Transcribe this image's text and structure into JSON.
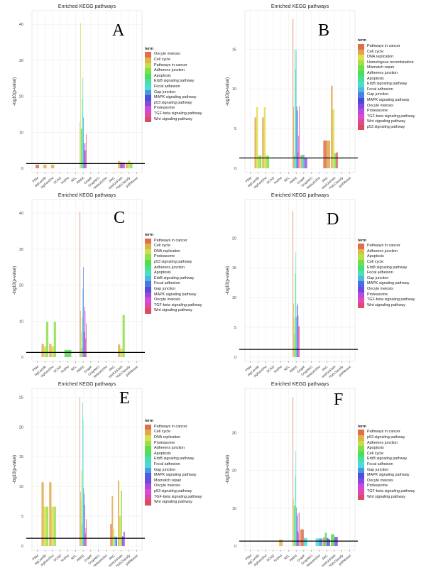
{
  "chart_data": [
    {
      "panel_label": "A",
      "type": "bar",
      "title": "Enriched KEGG pathways",
      "xlabel": "",
      "ylabel": "-log10(p-value)",
      "legend_title": "term",
      "ylim": [
        0,
        43
      ],
      "yticks": [
        0,
        10,
        20,
        30,
        40
      ],
      "threshold": 1.3,
      "grid": true,
      "legend_placement": "right",
      "categories": [
        "PAM",
        "sigCamfB",
        "sigGenSh4",
        "SCAD",
        "hnSh4",
        "RFL",
        "RRFE",
        "GrapK",
        "GraphKG",
        "networkSh4",
        "PAC",
        "swelUnPath",
        "HubClassify",
        "pathBoost"
      ],
      "terms": [
        "Oocyte meiosis",
        "Cell cycle",
        "Pathways in cancer",
        "Adherens junction",
        "Apoptosis",
        "ErbB signaling pathway",
        "Focal adhesion",
        "Gap junction",
        "MAPK signaling pathway",
        "p53 signaling pathway",
        "Proteasome",
        "TGF-beta signaling pathway",
        "Wnt signaling pathway"
      ],
      "bars": [
        [
          0,
          0,
          1
        ],
        [
          1,
          1,
          1
        ],
        [
          2,
          1,
          1
        ],
        [
          6,
          1,
          12.8
        ],
        [
          6,
          2,
          40.3
        ],
        [
          6,
          3,
          11
        ],
        [
          6,
          4,
          11
        ],
        [
          6,
          5,
          19.2
        ],
        [
          6,
          6,
          25.1
        ],
        [
          6,
          7,
          14.1
        ],
        [
          6,
          8,
          7
        ],
        [
          6,
          9,
          5
        ],
        [
          6,
          10,
          7
        ],
        [
          6,
          11,
          5
        ],
        [
          6,
          12,
          9.5
        ],
        [
          11,
          1,
          2
        ],
        [
          11,
          9,
          1.6
        ],
        [
          11,
          10,
          1.6
        ],
        [
          12,
          1,
          1.5
        ],
        [
          12,
          2,
          2.1
        ],
        [
          12,
          3,
          1.5
        ]
      ]
    },
    {
      "panel_label": "B",
      "type": "bar",
      "title": "Enriched KEGG pathways",
      "xlabel": "",
      "ylabel": "-log10(p-value)",
      "legend_title": "term",
      "ylim": [
        0,
        19.5
      ],
      "yticks": [
        0,
        5,
        10,
        15
      ],
      "threshold": 1.3,
      "grid": true,
      "legend_placement": "right",
      "categories": [
        "PAM",
        "sigCamfB",
        "sigGenSh4",
        "SCAD",
        "hnSh4",
        "RFL",
        "RRFE",
        "GrapK",
        "GraphKG",
        "networkSh4",
        "PAC",
        "swelUnPath",
        "HubClassify",
        "pathBoost"
      ],
      "terms": [
        "Pathways in cancer",
        "Cell cycle",
        "DNA replication",
        "Homologous recombination",
        "Mismatch repair",
        "Adherens junction",
        "Apoptosis",
        "ErbB signaling pathway",
        "Focal adhesion",
        "Gap junction",
        "MAPK signaling pathway",
        "Oocyte meiosis",
        "Proteasome",
        "TGF-beta signaling pathway",
        "Wnt signaling pathway",
        "p53 signaling pathway"
      ],
      "bars": [
        [
          1,
          1,
          6.4
        ],
        [
          1,
          2,
          7.7
        ],
        [
          1,
          3,
          1.6
        ],
        [
          1,
          4,
          1.6
        ],
        [
          2,
          1,
          6.4
        ],
        [
          2,
          2,
          7.7
        ],
        [
          2,
          3,
          1.6
        ],
        [
          2,
          4,
          1.6
        ],
        [
          6,
          0,
          18.8
        ],
        [
          6,
          1,
          7.7
        ],
        [
          6,
          5,
          1.6
        ],
        [
          6,
          6,
          15
        ],
        [
          6,
          7,
          12.5
        ],
        [
          6,
          8,
          14.9
        ],
        [
          6,
          9,
          7.8
        ],
        [
          6,
          10,
          7.3
        ],
        [
          6,
          12,
          2
        ],
        [
          6,
          13,
          4.1
        ],
        [
          6,
          14,
          7.8
        ],
        [
          7,
          1,
          1.7
        ],
        [
          7,
          6,
          1.7
        ],
        [
          7,
          8,
          1.7
        ],
        [
          7,
          11,
          1.3
        ],
        [
          7,
          12,
          1.3
        ],
        [
          10,
          0,
          3.5
        ],
        [
          10,
          1,
          3.5
        ],
        [
          11,
          1,
          10.4
        ],
        [
          11,
          2,
          7.4
        ],
        [
          11,
          4,
          1.9
        ],
        [
          11,
          15,
          2
        ]
      ]
    },
    {
      "panel_label": "C",
      "type": "bar",
      "title": "Enriched KEGG pathways",
      "xlabel": "",
      "ylabel": "-log10(p-value)",
      "legend_title": "term",
      "ylim": [
        0,
        43
      ],
      "yticks": [
        0,
        10,
        20,
        30,
        40
      ],
      "threshold": 1.3,
      "grid": true,
      "legend_placement": "right",
      "categories": [
        "PAM",
        "sigCamfB",
        "sigGenSh4",
        "SCAD",
        "hnSh4",
        "RFL",
        "RRFE",
        "GrapK",
        "GraphKG",
        "networkSh4",
        "PAC",
        "swelUnPath",
        "HubClassify",
        "pathBoost"
      ],
      "terms": [
        "Pathways in cancer",
        "Cell cycle",
        "DNA replication",
        "Proteasome",
        "p53 signaling pathway",
        "Adherens junction",
        "Apoptosis",
        "ErbB signaling pathway",
        "Focal adhesion",
        "Gap junction",
        "MAPK signaling pathway",
        "Oocyte meiosis",
        "TGF-beta signaling pathway",
        "Wnt signaling pathway"
      ],
      "bars": [
        [
          1,
          1,
          3.7
        ],
        [
          1,
          2,
          3
        ],
        [
          1,
          3,
          9.8
        ],
        [
          2,
          1,
          3.7
        ],
        [
          2,
          2,
          3
        ],
        [
          2,
          3,
          9.8
        ],
        [
          4,
          4,
          2
        ],
        [
          4,
          4,
          2
        ],
        [
          6,
          0,
          40.4
        ],
        [
          6,
          1,
          12.8
        ],
        [
          6,
          2,
          7
        ],
        [
          6,
          4,
          2.5
        ],
        [
          6,
          5,
          11
        ],
        [
          6,
          7,
          19
        ],
        [
          6,
          8,
          25
        ],
        [
          6,
          9,
          7
        ],
        [
          6,
          10,
          14
        ],
        [
          6,
          11,
          12.8
        ],
        [
          6,
          12,
          5.2
        ],
        [
          6,
          13,
          9.4
        ],
        [
          11,
          1,
          3.5
        ],
        [
          11,
          2,
          2.4
        ],
        [
          11,
          3,
          11.7
        ]
      ]
    },
    {
      "panel_label": "D",
      "type": "bar",
      "title": "Enriched KEGG pathways",
      "xlabel": "",
      "ylabel": "-log10(p-value)",
      "legend_title": "term",
      "ylim": [
        0,
        26
      ],
      "yticks": [
        0,
        5,
        10,
        15,
        20
      ],
      "threshold": 1.3,
      "grid": true,
      "legend_placement": "right",
      "categories": [
        "PAM",
        "sigCamfB",
        "sigGenSh4",
        "SCAD",
        "hnSh4",
        "RFL",
        "RRFE",
        "GrapK",
        "GraphKG",
        "networkSh4",
        "PAC",
        "swelUnPath",
        "HubClassify",
        "pathBoost"
      ],
      "terms": [
        "Pathways in cancer",
        "Adherens junction",
        "Apoptosis",
        "Cell cycle",
        "ErbB signaling pathway",
        "Focal adhesion",
        "Gap junction",
        "MAPK signaling pathway",
        "Oocyte meiosis",
        "Proteasome",
        "TGF-beta signaling pathway",
        "Wnt signaling pathway"
      ],
      "bars": [
        [
          6,
          0,
          24.5
        ],
        [
          6,
          1,
          9
        ],
        [
          6,
          2,
          4
        ],
        [
          6,
          3,
          6.7
        ],
        [
          6,
          4,
          14
        ],
        [
          6,
          5,
          17.6
        ],
        [
          6,
          6,
          6.7
        ],
        [
          6,
          7,
          8.6
        ],
        [
          6,
          8,
          9
        ],
        [
          6,
          9,
          7
        ],
        [
          6,
          10,
          5.2
        ],
        [
          6,
          11,
          5.2
        ]
      ]
    },
    {
      "panel_label": "E",
      "type": "bar",
      "title": "Enriched KEGG pathways",
      "xlabel": "",
      "ylabel": "-log10(p-value)",
      "legend_title": "term",
      "ylim": [
        0,
        26
      ],
      "yticks": [
        0,
        5,
        10,
        15,
        20,
        25
      ],
      "threshold": 1.3,
      "grid": true,
      "legend_placement": "right",
      "categories": [
        "PAM",
        "sigCamfB",
        "sigGenSh4",
        "SCAD",
        "hnSh4",
        "RFL",
        "RRFE",
        "GrapK",
        "GraphKG",
        "networkSh4",
        "PAC",
        "swelUnPath",
        "HubClassify",
        "pathBoost"
      ],
      "terms": [
        "Pathways in cancer",
        "Cell cycle",
        "DNA replication",
        "Proteasome",
        "Adherens junction",
        "Apoptosis",
        "ErbB signaling pathway",
        "Focal adhesion",
        "Gap junction",
        "MAPK signaling pathway",
        "Mismatch repair",
        "Oocyte meiosis",
        "p53 signaling pathway",
        "TGF-beta signaling pathway",
        "Wnt signaling pathway"
      ],
      "bars": [
        [
          1,
          1,
          10.7
        ],
        [
          1,
          2,
          6.6
        ],
        [
          1,
          3,
          6.6
        ],
        [
          2,
          1,
          10.7
        ],
        [
          2,
          2,
          6.6
        ],
        [
          2,
          3,
          6.6
        ],
        [
          6,
          0,
          25
        ],
        [
          6,
          1,
          9.1
        ],
        [
          6,
          2,
          7.8
        ],
        [
          6,
          3,
          12.7
        ],
        [
          6,
          4,
          3.6
        ],
        [
          6,
          6,
          24.1
        ],
        [
          6,
          7,
          21.2
        ],
        [
          6,
          8,
          9.7
        ],
        [
          6,
          9,
          8.7
        ],
        [
          6,
          11,
          6.9
        ],
        [
          6,
          12,
          2.1
        ],
        [
          6,
          13,
          3
        ],
        [
          6,
          14,
          4.5
        ],
        [
          10,
          0,
          3.7
        ],
        [
          10,
          1,
          8.4
        ],
        [
          10,
          2,
          2.9
        ],
        [
          10,
          7,
          1.6
        ],
        [
          10,
          9,
          1.5
        ],
        [
          11,
          1,
          11
        ],
        [
          11,
          2,
          5
        ],
        [
          11,
          3,
          9.3
        ],
        [
          11,
          10,
          1.6
        ],
        [
          11,
          11,
          2.4
        ]
      ]
    },
    {
      "panel_label": "F",
      "type": "bar",
      "title": "Enriched KEGG pathways",
      "xlabel": "",
      "ylabel": "-log10(p-value)",
      "legend_title": "term",
      "ylim": [
        0,
        41
      ],
      "yticks": [
        0,
        10,
        20,
        30
      ],
      "threshold": 1.3,
      "grid": true,
      "legend_placement": "right",
      "categories": [
        "PAM",
        "sigCamfB",
        "sigGenSh4",
        "SCAD",
        "hnSh4",
        "RFL",
        "RRFE",
        "GrapK",
        "GraphKG",
        "networkSh4",
        "PAC",
        "swelUnPath",
        "HubClassify",
        "pathBoost"
      ],
      "terms": [
        "Pathways in cancer",
        "p53 signaling pathway",
        "Adherens junction",
        "Apoptosis",
        "Cell cycle",
        "ErbB signaling pathway",
        "Focal adhesion",
        "Gap junction",
        "MAPK signaling pathway",
        "Oocyte meiosis",
        "Proteasome",
        "TGF-beta signaling pathway",
        "Wnt signaling pathway"
      ],
      "bars": [
        [
          4,
          1,
          1.7
        ],
        [
          6,
          0,
          39.5
        ],
        [
          6,
          2,
          12.4
        ],
        [
          6,
          3,
          10.7
        ],
        [
          6,
          4,
          10.7
        ],
        [
          6,
          5,
          18.4
        ],
        [
          6,
          6,
          25.2
        ],
        [
          6,
          7,
          10.2
        ],
        [
          6,
          8,
          8
        ],
        [
          6,
          9,
          4
        ],
        [
          6,
          10,
          8.8
        ],
        [
          6,
          11,
          3.5
        ],
        [
          6,
          12,
          8.8
        ],
        [
          7,
          0,
          4.4
        ],
        [
          7,
          6,
          2.1
        ],
        [
          9,
          6,
          2
        ],
        [
          9,
          7,
          2
        ],
        [
          10,
          0,
          2.3
        ],
        [
          10,
          4,
          3.5
        ],
        [
          10,
          8,
          2.1
        ],
        [
          10,
          9,
          1.8
        ],
        [
          11,
          4,
          3.1
        ],
        [
          11,
          9,
          2.4
        ]
      ]
    }
  ]
}
